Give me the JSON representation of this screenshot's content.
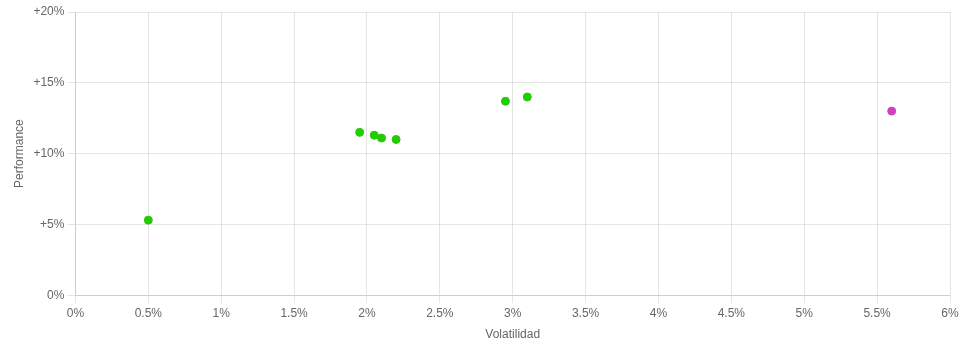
{
  "chart_data": {
    "type": "scatter",
    "xlabel": "Volatilidad",
    "ylabel": "Performance",
    "xlim": [
      0.0,
      0.06
    ],
    "ylim": [
      0.0,
      0.2
    ],
    "xticks": [
      {
        "value": 0.0,
        "label": "0%"
      },
      {
        "value": 0.005,
        "label": "0.5%"
      },
      {
        "value": 0.01,
        "label": "1%"
      },
      {
        "value": 0.015,
        "label": "1.5%"
      },
      {
        "value": 0.02,
        "label": "2%"
      },
      {
        "value": 0.025,
        "label": "2.5%"
      },
      {
        "value": 0.03,
        "label": "3%"
      },
      {
        "value": 0.035,
        "label": "3.5%"
      },
      {
        "value": 0.04,
        "label": "4%"
      },
      {
        "value": 0.045,
        "label": "4.5%"
      },
      {
        "value": 0.05,
        "label": "5%"
      },
      {
        "value": 0.055,
        "label": "5.5%"
      },
      {
        "value": 0.06,
        "label": "6%"
      }
    ],
    "yticks": [
      {
        "value": 0.0,
        "label": "0%"
      },
      {
        "value": 0.05,
        "label": "+5%"
      },
      {
        "value": 0.1,
        "label": "+10%"
      },
      {
        "value": 0.15,
        "label": "+15%"
      },
      {
        "value": 0.2,
        "label": "+20%"
      }
    ],
    "grid": true,
    "series": [
      {
        "color": "#22cc00",
        "x": [
          0.005,
          0.0195,
          0.0205,
          0.021,
          0.022,
          0.0295,
          0.031
        ],
        "values": [
          0.053,
          0.115,
          0.113,
          0.111,
          0.11,
          0.137,
          0.14
        ]
      },
      {
        "color": "#cc44bb",
        "x": [
          0.056
        ],
        "values": [
          0.13
        ]
      }
    ]
  }
}
